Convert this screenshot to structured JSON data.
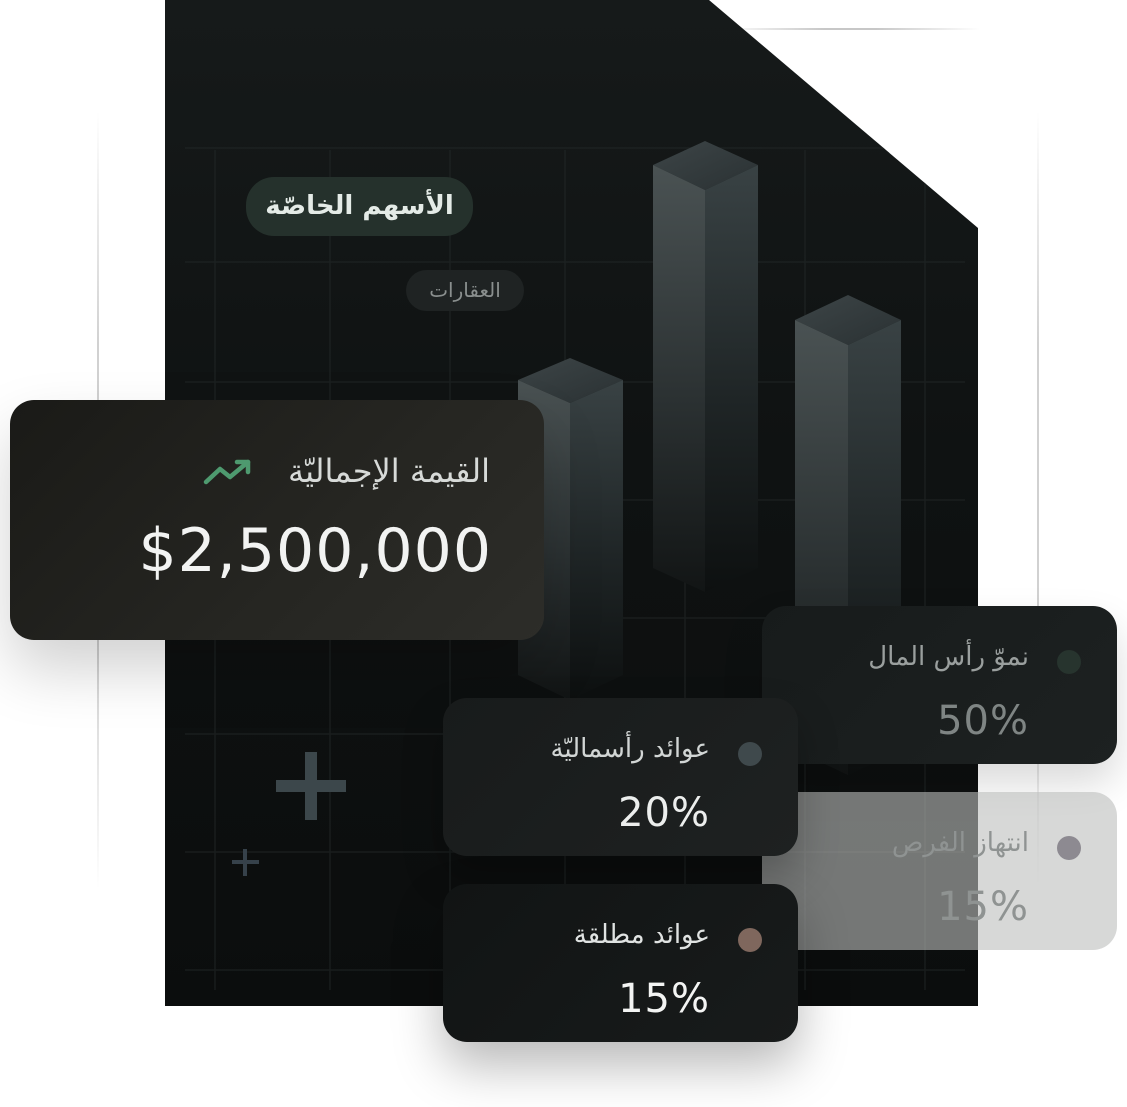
{
  "tags": {
    "private_equity": "الأسهم الخاصّة",
    "real_estate": "العقارات"
  },
  "total": {
    "label": "القيمة الإجماليّة",
    "value": "$2,500,000",
    "icon": "trending-up-icon",
    "icon_color": "#4e9a6f"
  },
  "metrics": {
    "capital_growth": {
      "label": "نموّ رأس المال",
      "value": "50%",
      "dot_color": "#27342e"
    },
    "opportunistic": {
      "label": "انتهاز الفرص",
      "value": "15%",
      "dot_color": "#8d8a91"
    },
    "capital_returns": {
      "label": "عوائد رأسماليّة",
      "value": "20%",
      "dot_color": "#3f494c"
    },
    "absolute_returns": {
      "label": "عوائد مطلقة",
      "value": "15%",
      "dot_color": "#7f675d"
    }
  },
  "colors": {
    "panel": "#121515",
    "accent": "#4e9a6f"
  }
}
